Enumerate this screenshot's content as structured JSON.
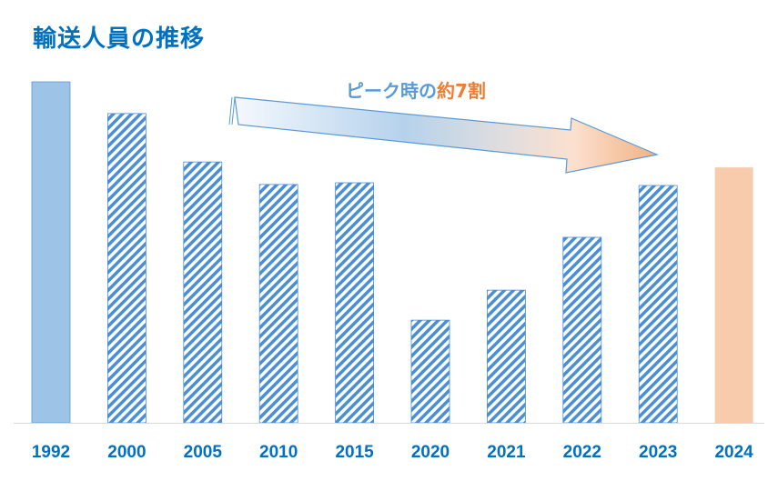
{
  "chart_data": {
    "type": "bar",
    "title": "輸送人員の推移",
    "categories": [
      "1992",
      "2000",
      "2005",
      "2010",
      "2015",
      "2020",
      "2021",
      "2022",
      "2023",
      "2024"
    ],
    "values": [
      100,
      90.7,
      76.5,
      69.9,
      70.4,
      30.1,
      38.9,
      54.4,
      69.6,
      74.9
    ],
    "value_scale": "relative to 1992 peak (=100); no y-axis printed",
    "ylim": [
      0,
      100
    ],
    "grid": false,
    "bar_styles": [
      "solid-blue",
      "hatched",
      "hatched",
      "hatched",
      "hatched",
      "hatched",
      "hatched",
      "hatched",
      "hatched",
      "solid-orange"
    ],
    "annotation": {
      "part1": "ピーク時の",
      "part2": "約7割"
    },
    "colors": {
      "title": "#0070c0",
      "solid_blue": "#9dc3e6",
      "hatch": "#4a8fd6",
      "solid_orange": "#f8cbad",
      "tick_label": "#0070c0",
      "annot_blue": "#5b9bd5",
      "annot_orange": "#ed7d31"
    }
  }
}
